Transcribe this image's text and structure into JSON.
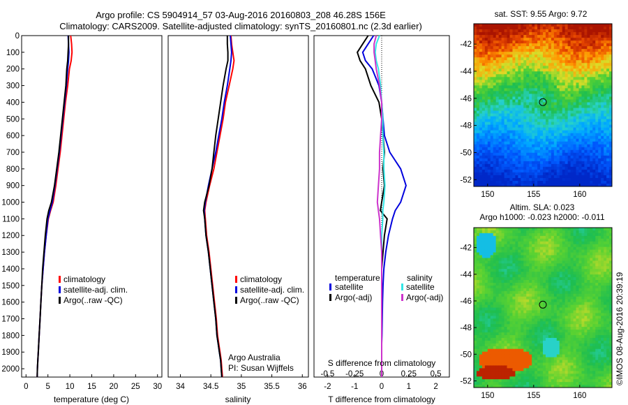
{
  "header": {
    "line1": "Argo profile: CS 5904914_57 03-Aug-2016 20160803_208 46.28S 156E",
    "line2": "Climatology: CARS2009. Satellite-adjusted climatology: synTS_20160801.nc (2.3d earlier)"
  },
  "credits": {
    "org": "Argo Australia",
    "pi": "PI: Susan Wijffels",
    "stamp": "©IMOS 08-Aug-2016 20:39:19"
  },
  "colors": {
    "climatology": "#ff0000",
    "satellite": "#0000dd",
    "argo": "#000000",
    "salinity_satellite": "#33e6e6",
    "salinity_argo": "#cc33cc"
  },
  "chart_data": [
    {
      "type": "line",
      "id": "temperature",
      "xlabel": "temperature (deg C)",
      "ylabel": "",
      "xlim": [
        -1,
        31
      ],
      "ylim": [
        2050,
        0
      ],
      "xticks": [
        0,
        5,
        10,
        15,
        20,
        25,
        30
      ],
      "yticks": [
        0,
        100,
        200,
        300,
        400,
        500,
        600,
        700,
        800,
        900,
        1000,
        1100,
        1200,
        1300,
        1400,
        1500,
        1600,
        1700,
        1800,
        1900,
        2000
      ],
      "legend_position": "lower-center",
      "series": [
        {
          "name": "climatology",
          "color": "#ff0000",
          "x": [
            10.2,
            10.4,
            10.5,
            10.3,
            9.9,
            9.5,
            9.0,
            8.6,
            8.2,
            7.8,
            7.3,
            6.8,
            6.2,
            5.6,
            5.1,
            4.6,
            4.2,
            3.9,
            3.6,
            3.4,
            3.2,
            3.0,
            2.9,
            2.8,
            2.7,
            2.6,
            2.55
          ],
          "y": [
            0,
            50,
            100,
            150,
            200,
            300,
            400,
            500,
            600,
            700,
            800,
            900,
            1000,
            1050,
            1100,
            1200,
            1300,
            1400,
            1500,
            1600,
            1700,
            1800,
            1850,
            1900,
            1950,
            2000,
            2050
          ]
        },
        {
          "name": "satellite-adj. clim.",
          "color": "#0000dd",
          "x": [
            9.6,
            9.7,
            9.8,
            9.7,
            9.5,
            9.2,
            8.8,
            8.4,
            8.0,
            7.6,
            7.1,
            6.6,
            6.0,
            5.5,
            5.0,
            4.6,
            4.2,
            3.9,
            3.6,
            3.4,
            3.2,
            3.0,
            2.9,
            2.8,
            2.7,
            2.6,
            2.55
          ],
          "y": [
            0,
            50,
            100,
            150,
            200,
            300,
            400,
            500,
            600,
            700,
            800,
            900,
            1000,
            1050,
            1100,
            1200,
            1300,
            1400,
            1500,
            1600,
            1700,
            1800,
            1850,
            1900,
            1950,
            2000,
            2050
          ]
        },
        {
          "name": "Argo(..raw -QC)",
          "color": "#000000",
          "x": [
            9.7,
            9.7,
            9.6,
            9.5,
            9.3,
            9.1,
            8.7,
            8.3,
            7.9,
            7.5,
            7.0,
            6.5,
            5.8,
            5.2,
            4.8,
            4.4,
            4.1,
            3.8,
            3.6,
            3.4,
            3.2,
            3.0,
            2.9,
            2.8,
            2.7,
            2.6,
            2.55
          ],
          "y": [
            0,
            50,
            100,
            150,
            200,
            300,
            400,
            500,
            600,
            700,
            800,
            900,
            1000,
            1050,
            1100,
            1200,
            1300,
            1400,
            1500,
            1600,
            1700,
            1800,
            1850,
            1900,
            1950,
            2000,
            2050
          ]
        }
      ]
    },
    {
      "type": "line",
      "id": "salinity",
      "xlabel": "salinity",
      "ylabel": "",
      "xlim": [
        33.8,
        36.1
      ],
      "ylim": [
        2050,
        0
      ],
      "xticks": [
        34,
        34.5,
        35,
        35.5,
        36
      ],
      "legend_position": "lower-center",
      "series": [
        {
          "name": "climatology",
          "color": "#ff0000",
          "x": [
            34.83,
            34.84,
            34.86,
            34.88,
            34.86,
            34.8,
            34.74,
            34.7,
            34.65,
            34.6,
            34.55,
            34.48,
            34.42,
            34.4,
            34.41,
            34.43,
            34.47,
            34.5,
            34.53,
            34.56,
            34.59,
            34.61,
            34.63,
            34.65,
            34.67,
            34.68,
            34.69
          ],
          "y": [
            0,
            50,
            100,
            150,
            200,
            300,
            400,
            500,
            600,
            700,
            800,
            900,
            1000,
            1050,
            1100,
            1200,
            1300,
            1400,
            1500,
            1600,
            1700,
            1800,
            1850,
            1900,
            1950,
            2000,
            2050
          ]
        },
        {
          "name": "satellite-adj. clim.",
          "color": "#0000dd",
          "x": [
            34.82,
            34.83,
            34.84,
            34.83,
            34.81,
            34.77,
            34.72,
            34.68,
            34.63,
            34.58,
            34.52,
            34.46,
            34.41,
            34.39,
            34.4,
            34.42,
            34.46,
            34.49,
            34.52,
            34.55,
            34.58,
            34.6,
            34.62,
            34.64,
            34.66,
            34.67,
            34.68
          ],
          "y": [
            0,
            50,
            100,
            150,
            200,
            300,
            400,
            500,
            600,
            700,
            800,
            900,
            1000,
            1050,
            1100,
            1200,
            1300,
            1400,
            1500,
            1600,
            1700,
            1800,
            1850,
            1900,
            1950,
            2000,
            2050
          ]
        },
        {
          "name": "Argo(..raw -QC)",
          "color": "#000000",
          "x": [
            34.77,
            34.77,
            34.78,
            34.78,
            34.75,
            34.7,
            34.66,
            34.62,
            34.58,
            34.55,
            34.52,
            34.47,
            34.4,
            34.38,
            34.4,
            34.42,
            34.46,
            34.49,
            34.52,
            34.55,
            34.58,
            34.6,
            34.62,
            34.64,
            34.66,
            34.67,
            34.68
          ],
          "y": [
            0,
            50,
            100,
            150,
            200,
            300,
            400,
            500,
            600,
            700,
            800,
            900,
            1000,
            1050,
            1100,
            1200,
            1300,
            1400,
            1500,
            1600,
            1700,
            1800,
            1850,
            1900,
            1950,
            2000,
            2050
          ]
        }
      ]
    },
    {
      "type": "line",
      "id": "differences",
      "xlabel": "T difference from climatology",
      "x2label": "S difference from climatology",
      "xlim": [
        -2.5,
        2.5
      ],
      "ylim": [
        2050,
        0
      ],
      "xticks": [
        -2,
        -1,
        0,
        1,
        2
      ],
      "x2ticks": [
        -0.5,
        -0.25,
        0,
        0.25,
        0.5
      ],
      "legend_groups": [
        "temperature",
        "salinity"
      ],
      "series": [
        {
          "name": "satellite",
          "group": "temperature",
          "color": "#0000dd",
          "x": [
            -0.3,
            -0.5,
            -0.7,
            -0.6,
            -0.35,
            -0.1,
            0.0,
            0.05,
            0.1,
            0.3,
            0.7,
            0.9,
            0.7,
            0.5,
            0.4,
            0.25,
            0.15,
            0.08,
            0.05,
            0.03,
            0.02,
            0.01,
            0.0,
            0.0,
            0.0,
            0.0,
            0.0
          ],
          "y": [
            0,
            50,
            100,
            150,
            200,
            300,
            400,
            500,
            600,
            700,
            800,
            900,
            1000,
            1050,
            1100,
            1200,
            1300,
            1400,
            1500,
            1600,
            1700,
            1800,
            1850,
            1900,
            1950,
            2000,
            2050
          ]
        },
        {
          "name": "Argo(-adj)",
          "group": "temperature",
          "color": "#000000",
          "x": [
            -0.5,
            -0.7,
            -0.9,
            -0.8,
            -0.6,
            -0.4,
            -0.1,
            0.0,
            0.05,
            0.1,
            0.05,
            0.1,
            0.0,
            -0.05,
            0.2,
            0.1,
            0.05,
            0.0,
            0.0,
            0.0,
            0.0,
            0.0,
            0.0,
            0.0,
            0.0,
            0.0,
            0.0
          ],
          "y": [
            0,
            50,
            100,
            150,
            200,
            300,
            400,
            500,
            600,
            700,
            800,
            900,
            1000,
            1050,
            1100,
            1200,
            1300,
            1400,
            1500,
            1600,
            1700,
            1800,
            1850,
            1900,
            1950,
            2000,
            2050
          ]
        },
        {
          "name": "satellite",
          "group": "salinity",
          "color": "#33e6e6",
          "x": [
            -0.02,
            -0.05,
            -0.06,
            -0.05,
            -0.03,
            -0.01,
            0.0,
            0.01,
            0.01,
            0.02,
            0.02,
            0.03,
            0.02,
            0.01,
            0.01,
            0.0,
            0.0,
            0.0,
            0.0,
            0.0,
            0.0,
            0.0,
            0.0,
            0.0,
            0.0,
            0.0,
            0.0
          ],
          "y": [
            0,
            50,
            100,
            150,
            200,
            300,
            400,
            500,
            600,
            700,
            800,
            900,
            1000,
            1050,
            1100,
            1200,
            1300,
            1400,
            1500,
            1600,
            1700,
            1800,
            1850,
            1900,
            1950,
            2000,
            2050
          ]
        },
        {
          "name": "Argo(-adj)",
          "group": "salinity",
          "color": "#cc33cc",
          "x": [
            -0.05,
            -0.07,
            -0.07,
            -0.06,
            -0.05,
            -0.02,
            0.0,
            0.0,
            -0.01,
            -0.02,
            -0.02,
            -0.03,
            -0.04,
            -0.03,
            -0.02,
            -0.01,
            0.0,
            0.0,
            0.0,
            0.0,
            0.0,
            0.0,
            0.0,
            0.0,
            0.0,
            0.0,
            0.0
          ],
          "y": [
            0,
            50,
            100,
            150,
            200,
            300,
            400,
            500,
            600,
            700,
            800,
            900,
            1000,
            1050,
            1100,
            1200,
            1300,
            1400,
            1500,
            1600,
            1700,
            1800,
            1850,
            1900,
            1950,
            2000,
            2050
          ]
        }
      ]
    },
    {
      "type": "heatmap",
      "id": "sst-map",
      "title": "sat. SST: 9.55  Argo: 9.72",
      "xlim": [
        148.5,
        163.5
      ],
      "ylim": [
        -52.5,
        -40.5
      ],
      "xticks": [
        150,
        155,
        160
      ],
      "yticks": [
        -42,
        -44,
        -46,
        -48,
        -50,
        -52
      ],
      "marker": {
        "lon": 156,
        "lat": -46.28
      }
    },
    {
      "type": "heatmap",
      "id": "sla-map",
      "title": "Altim. SLA: 0.023",
      "subtitle": "Argo h1000: -0.023  h2000: -0.011",
      "xlim": [
        148.5,
        163.5
      ],
      "ylim": [
        -52.5,
        -40.5
      ],
      "xticks": [
        150,
        155,
        160
      ],
      "yticks": [
        -42,
        -44,
        -46,
        -48,
        -50,
        -52
      ],
      "marker": {
        "lon": 156,
        "lat": -46.28
      }
    }
  ]
}
